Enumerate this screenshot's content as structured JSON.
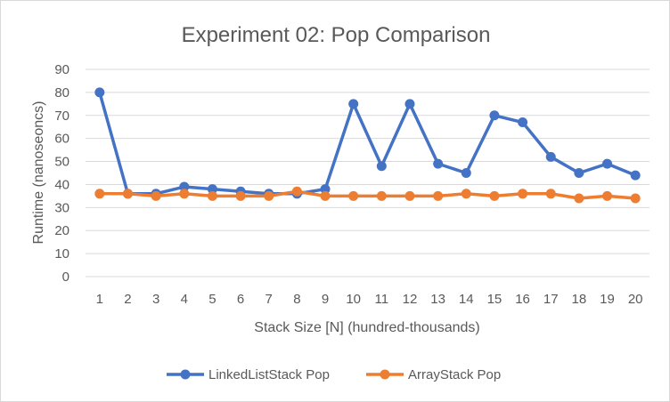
{
  "chart_data": {
    "type": "line",
    "title": "Experiment 02: Pop Comparison",
    "xlabel": "Stack Size [N] (hundred-thousands)",
    "ylabel": "Runtime (nanoseoncs)",
    "categories": [
      "1",
      "2",
      "3",
      "4",
      "5",
      "6",
      "7",
      "8",
      "9",
      "10",
      "11",
      "12",
      "13",
      "14",
      "15",
      "16",
      "17",
      "18",
      "19",
      "20"
    ],
    "ylim": [
      0,
      90
    ],
    "yticks": [
      0,
      10,
      20,
      30,
      40,
      50,
      60,
      70,
      80,
      90
    ],
    "grid": true,
    "legend_position": "bottom",
    "series": [
      {
        "name": "LinkedListStack Pop",
        "color": "#4472c4",
        "values": [
          80,
          36,
          36,
          39,
          38,
          37,
          36,
          36,
          38,
          75,
          48,
          75,
          49,
          45,
          70,
          67,
          52,
          45,
          49,
          44
        ]
      },
      {
        "name": "ArrayStack Pop",
        "color": "#ed7d31",
        "values": [
          36,
          36,
          35,
          36,
          35,
          35,
          35,
          37,
          35,
          35,
          35,
          35,
          35,
          36,
          35,
          36,
          36,
          34,
          35,
          34
        ]
      }
    ]
  }
}
